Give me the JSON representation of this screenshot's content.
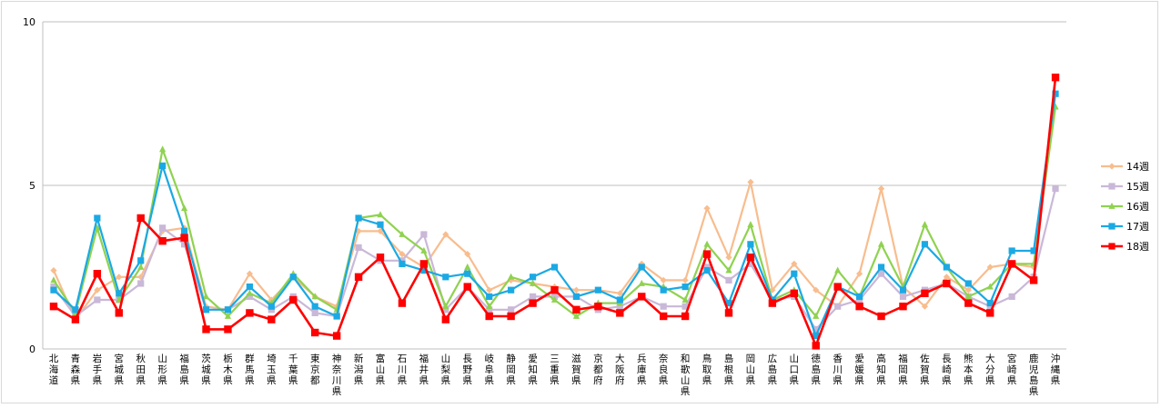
{
  "chart_data": {
    "type": "line",
    "ylim": [
      0,
      10
    ],
    "yticks": [
      "0",
      "5",
      "10"
    ],
    "grid": true,
    "legend_position": "right",
    "categories": [
      "北海道",
      "青森県",
      "岩手県",
      "宮城県",
      "秋田県",
      "山形県",
      "福島県",
      "茨城県",
      "栃木県",
      "群馬県",
      "埼玉県",
      "千葉県",
      "東京都",
      "神奈川県",
      "新潟県",
      "富山県",
      "石川県",
      "福井県",
      "山梨県",
      "長野県",
      "岐阜県",
      "静岡県",
      "愛知県",
      "三重県",
      "滋賀県",
      "京都府",
      "大阪府",
      "兵庫県",
      "奈良県",
      "和歌山県",
      "鳥取県",
      "島根県",
      "岡山県",
      "広島県",
      "山口県",
      "徳島県",
      "香川県",
      "愛媛県",
      "高知県",
      "福岡県",
      "佐賀県",
      "長崎県",
      "熊本県",
      "大分県",
      "宮崎県",
      "鹿児島県",
      "沖縄県"
    ],
    "series": [
      {
        "name": "14週",
        "color": "#f8bd8e",
        "marker": "diamond",
        "values": [
          2.4,
          0.9,
          1.8,
          2.2,
          2.2,
          3.6,
          3.7,
          1.3,
          1.2,
          2.3,
          1.5,
          2.2,
          1.6,
          1.3,
          3.6,
          3.6,
          2.9,
          2.5,
          3.5,
          2.9,
          1.8,
          2.1,
          2.0,
          1.9,
          1.8,
          1.8,
          1.7,
          2.6,
          2.1,
          2.1,
          4.3,
          2.8,
          5.1,
          1.8,
          2.6,
          1.8,
          1.3,
          2.3,
          4.9,
          1.9,
          1.3,
          2.2,
          1.8,
          2.5,
          2.6,
          2.5,
          7.8
        ]
      },
      {
        "name": "15週",
        "color": "#c9b8d8",
        "marker": "square",
        "values": [
          1.9,
          1.0,
          1.5,
          1.5,
          2.0,
          3.7,
          3.2,
          1.2,
          1.2,
          1.6,
          1.2,
          1.6,
          1.1,
          1.0,
          3.1,
          2.7,
          2.7,
          3.5,
          1.2,
          1.9,
          1.2,
          1.2,
          1.6,
          1.6,
          1.6,
          1.2,
          1.3,
          1.6,
          1.3,
          1.3,
          2.5,
          2.1,
          2.6,
          1.5,
          1.6,
          0.6,
          1.3,
          1.5,
          2.3,
          1.6,
          1.8,
          2.0,
          1.6,
          1.3,
          1.6,
          2.2,
          4.9
        ]
      },
      {
        "name": "16週",
        "color": "#8fd250",
        "marker": "triangle",
        "values": [
          2.1,
          1.1,
          3.7,
          1.5,
          2.5,
          6.1,
          4.3,
          1.6,
          1.0,
          1.7,
          1.4,
          2.3,
          1.6,
          1.2,
          4.0,
          4.1,
          3.5,
          3.0,
          1.3,
          2.5,
          1.3,
          2.2,
          2.0,
          1.5,
          1.0,
          1.4,
          1.4,
          2.0,
          1.9,
          1.5,
          3.2,
          2.4,
          3.8,
          1.5,
          1.8,
          1.0,
          2.4,
          1.6,
          3.2,
          1.9,
          3.8,
          2.5,
          1.6,
          1.9,
          2.6,
          2.6,
          7.4
        ]
      },
      {
        "name": "17週",
        "color": "#1ba9e4",
        "marker": "square",
        "values": [
          1.8,
          1.2,
          4.0,
          1.7,
          2.7,
          5.6,
          3.6,
          1.2,
          1.2,
          1.9,
          1.3,
          2.2,
          1.3,
          1.0,
          4.0,
          3.8,
          2.6,
          2.4,
          2.2,
          2.3,
          1.6,
          1.8,
          2.2,
          2.5,
          1.6,
          1.8,
          1.5,
          2.5,
          1.8,
          1.9,
          2.4,
          1.4,
          3.2,
          1.5,
          2.3,
          0.4,
          1.9,
          1.6,
          2.5,
          1.8,
          3.2,
          2.5,
          2.0,
          1.4,
          3.0,
          3.0,
          7.8
        ]
      },
      {
        "name": "18週",
        "color": "#ff0000",
        "marker": "square",
        "values": [
          1.3,
          0.9,
          2.3,
          1.1,
          4.0,
          3.3,
          3.4,
          0.6,
          0.6,
          1.1,
          0.9,
          1.5,
          0.5,
          0.4,
          2.2,
          2.8,
          1.4,
          2.6,
          0.9,
          1.9,
          1.0,
          1.0,
          1.4,
          1.8,
          1.2,
          1.3,
          1.1,
          1.6,
          1.0,
          1.0,
          2.9,
          1.1,
          2.8,
          1.4,
          1.7,
          0.1,
          1.9,
          1.3,
          1.0,
          1.3,
          1.7,
          2.0,
          1.4,
          1.1,
          2.6,
          2.1,
          8.3
        ]
      }
    ]
  }
}
